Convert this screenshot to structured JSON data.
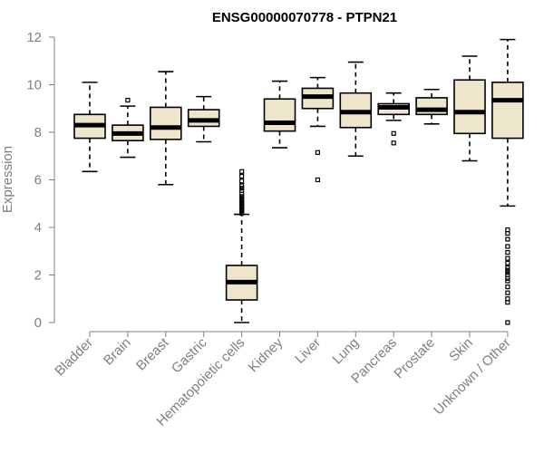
{
  "chart_data": {
    "type": "boxplot",
    "title": "ENSG00000070778 - PTPN21",
    "xlabel": "",
    "ylabel": "Expression",
    "ylim": [
      0,
      12
    ],
    "yticks": [
      "0",
      "2",
      "4",
      "6",
      "8",
      "10",
      "12"
    ],
    "box_fill": "#ede5cc",
    "categories": [
      "Bladder",
      "Brain",
      "Breast",
      "Gastric",
      "Hematopoietic cells",
      "Kidney",
      "Liver",
      "Lung",
      "Pancreas",
      "Prostate",
      "Skin",
      "Unknown / Other"
    ],
    "boxes": [
      {
        "name": "Bladder",
        "whislo": 6.35,
        "q1": 7.75,
        "med": 8.3,
        "q3": 8.75,
        "whishi": 10.1,
        "fliers": []
      },
      {
        "name": "Brain",
        "whislo": 6.95,
        "q1": 7.65,
        "med": 7.95,
        "q3": 8.3,
        "whishi": 9.1,
        "fliers": [
          9.35
        ]
      },
      {
        "name": "Breast",
        "whislo": 5.8,
        "q1": 7.7,
        "med": 8.2,
        "q3": 9.05,
        "whishi": 10.55,
        "fliers": []
      },
      {
        "name": "Gastric",
        "whislo": 7.6,
        "q1": 8.25,
        "med": 8.5,
        "q3": 8.95,
        "whishi": 9.5,
        "fliers": []
      },
      {
        "name": "Hematopoietic cells",
        "whislo": 0.0,
        "q1": 0.95,
        "med": 1.7,
        "q3": 2.4,
        "whishi": 4.55,
        "fliers": [
          4.6,
          4.65,
          4.7,
          4.75,
          4.8,
          4.85,
          4.9,
          4.95,
          5.0,
          5.05,
          5.1,
          5.15,
          5.2,
          5.3,
          5.4,
          5.55,
          5.65,
          5.75,
          5.95,
          6.15,
          6.35
        ]
      },
      {
        "name": "Kidney",
        "whislo": 7.35,
        "q1": 8.05,
        "med": 8.4,
        "q3": 9.4,
        "whishi": 10.15,
        "fliers": []
      },
      {
        "name": "Liver",
        "whislo": 8.25,
        "q1": 9.0,
        "med": 9.5,
        "q3": 9.85,
        "whishi": 10.3,
        "fliers": [
          7.15,
          6.0
        ]
      },
      {
        "name": "Lung",
        "whislo": 7.0,
        "q1": 8.2,
        "med": 8.85,
        "q3": 9.65,
        "whishi": 10.95,
        "fliers": []
      },
      {
        "name": "Pancreas",
        "whislo": 8.5,
        "q1": 8.75,
        "med": 9.05,
        "q3": 9.2,
        "whishi": 9.65,
        "fliers": [
          7.95,
          7.55
        ]
      },
      {
        "name": "Prostate",
        "whislo": 8.35,
        "q1": 8.75,
        "med": 8.95,
        "q3": 9.45,
        "whishi": 9.8,
        "fliers": []
      },
      {
        "name": "Skin",
        "whislo": 6.8,
        "q1": 7.95,
        "med": 8.85,
        "q3": 10.2,
        "whishi": 11.2,
        "fliers": []
      },
      {
        "name": "Unknown / Other",
        "whislo": 4.9,
        "q1": 7.75,
        "med": 9.35,
        "q3": 10.1,
        "whishi": 11.9,
        "fliers": [
          3.9,
          3.75,
          3.5,
          3.2,
          2.95,
          2.7,
          2.5,
          2.3,
          2.2,
          2.1,
          2.0,
          1.85,
          1.75,
          1.5,
          1.25,
          1.0,
          0.85,
          0.0
        ]
      }
    ]
  }
}
